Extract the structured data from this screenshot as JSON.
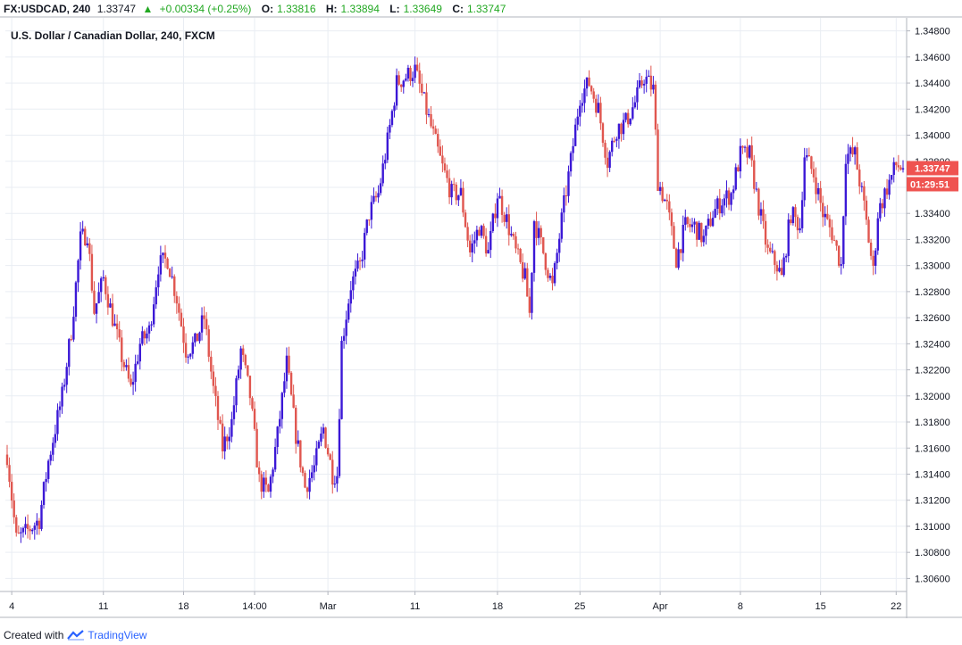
{
  "header": {
    "symbol": "FX:USDCAD, 240",
    "last": "1.33747",
    "change": "+0.00334 (+0.25%)",
    "o_label": "O:",
    "o_value": "1.33816",
    "h_label": "H:",
    "h_value": "1.33894",
    "l_label": "L:",
    "l_value": "1.33649",
    "c_label": "C:",
    "c_value": "1.33747"
  },
  "footer": {
    "created_with": "Created with",
    "brand": "TradingView"
  },
  "price_badge": "1.33747",
  "timer_badge": "01:29:51",
  "colors": {
    "up": "#3b18d6",
    "down": "#e0564f",
    "badge": "#ef5350",
    "grid": "#e9edf3",
    "axis": "#b2b5be"
  },
  "chart_data": {
    "type": "candlestick",
    "title": "U.S. Dollar / Canadian Dollar, 240, FXCM",
    "xlabel": "",
    "ylabel": "",
    "ylim": [
      1.305,
      1.349
    ],
    "y_ticks": [
      "1.30600",
      "1.30800",
      "1.31000",
      "1.31200",
      "1.31400",
      "1.31600",
      "1.31800",
      "1.32000",
      "1.32200",
      "1.32400",
      "1.32600",
      "1.32800",
      "1.33000",
      "1.33200",
      "1.33400",
      "1.33600",
      "1.33800",
      "1.34000",
      "1.34200",
      "1.34400",
      "1.34600",
      "1.34800"
    ],
    "x_ticks": [
      {
        "label": "4",
        "bar": 2
      },
      {
        "label": "11",
        "bar": 42
      },
      {
        "label": "18",
        "bar": 77
      },
      {
        "label": "14:00",
        "bar": 108
      },
      {
        "label": "Mar",
        "bar": 140
      },
      {
        "label": "11",
        "bar": 178
      },
      {
        "label": "18",
        "bar": 214
      },
      {
        "label": "25",
        "bar": 250
      },
      {
        "label": "Apr",
        "bar": 285
      },
      {
        "label": "8",
        "bar": 320
      },
      {
        "label": "15",
        "bar": 355
      },
      {
        "label": "22",
        "bar": 388
      }
    ],
    "bar_count": 392,
    "waypoints": [
      [
        0,
        1.3155
      ],
      [
        4,
        1.309
      ],
      [
        8,
        1.3095
      ],
      [
        14,
        1.3105
      ],
      [
        18,
        1.315
      ],
      [
        24,
        1.32
      ],
      [
        28,
        1.325
      ],
      [
        32,
        1.332
      ],
      [
        35,
        1.3325
      ],
      [
        38,
        1.3265
      ],
      [
        42,
        1.329
      ],
      [
        46,
        1.326
      ],
      [
        50,
        1.323
      ],
      [
        54,
        1.3205
      ],
      [
        58,
        1.324
      ],
      [
        62,
        1.325
      ],
      [
        66,
        1.33
      ],
      [
        70,
        1.3305
      ],
      [
        74,
        1.3275
      ],
      [
        78,
        1.3235
      ],
      [
        82,
        1.324
      ],
      [
        86,
        1.326
      ],
      [
        90,
        1.3205
      ],
      [
        94,
        1.316
      ],
      [
        98,
        1.318
      ],
      [
        102,
        1.3235
      ],
      [
        106,
        1.32
      ],
      [
        110,
        1.3135
      ],
      [
        114,
        1.3125
      ],
      [
        118,
        1.317
      ],
      [
        122,
        1.3225
      ],
      [
        126,
        1.317
      ],
      [
        130,
        1.313
      ],
      [
        134,
        1.3145
      ],
      [
        138,
        1.3175
      ],
      [
        142,
        1.314
      ],
      [
        144,
        1.314
      ],
      [
        146,
        1.324
      ],
      [
        150,
        1.3285
      ],
      [
        154,
        1.33
      ],
      [
        158,
        1.334
      ],
      [
        162,
        1.3355
      ],
      [
        166,
        1.3395
      ],
      [
        170,
        1.344
      ],
      [
        174,
        1.3445
      ],
      [
        178,
        1.345
      ],
      [
        182,
        1.3425
      ],
      [
        186,
        1.34
      ],
      [
        190,
        1.3375
      ],
      [
        194,
        1.3355
      ],
      [
        198,
        1.3355
      ],
      [
        202,
        1.331
      ],
      [
        206,
        1.333
      ],
      [
        210,
        1.331
      ],
      [
        214,
        1.3355
      ],
      [
        218,
        1.3335
      ],
      [
        222,
        1.331
      ],
      [
        226,
        1.329
      ],
      [
        228,
        1.3263
      ],
      [
        230,
        1.3335
      ],
      [
        234,
        1.331
      ],
      [
        238,
        1.3283
      ],
      [
        242,
        1.3335
      ],
      [
        246,
        1.338
      ],
      [
        250,
        1.343
      ],
      [
        254,
        1.344
      ],
      [
        258,
        1.342
      ],
      [
        262,
        1.338
      ],
      [
        266,
        1.3405
      ],
      [
        270,
        1.341
      ],
      [
        274,
        1.3425
      ],
      [
        278,
        1.3445
      ],
      [
        282,
        1.3435
      ],
      [
        284,
        1.3365
      ],
      [
        288,
        1.3345
      ],
      [
        292,
        1.3305
      ],
      [
        296,
        1.333
      ],
      [
        300,
        1.333
      ],
      [
        304,
        1.332
      ],
      [
        308,
        1.334
      ],
      [
        312,
        1.335
      ],
      [
        316,
        1.3355
      ],
      [
        320,
        1.3385
      ],
      [
        324,
        1.3385
      ],
      [
        328,
        1.3345
      ],
      [
        332,
        1.331
      ],
      [
        336,
        1.33
      ],
      [
        338,
        1.329
      ],
      [
        342,
        1.334
      ],
      [
        346,
        1.333
      ],
      [
        348,
        1.3385
      ],
      [
        352,
        1.337
      ],
      [
        356,
        1.334
      ],
      [
        360,
        1.3325
      ],
      [
        364,
        1.33
      ],
      [
        366,
        1.3385
      ],
      [
        370,
        1.3385
      ],
      [
        374,
        1.3345
      ],
      [
        378,
        1.3295
      ],
      [
        380,
        1.334
      ],
      [
        384,
        1.336
      ],
      [
        388,
        1.3377
      ],
      [
        391,
        1.33747
      ]
    ],
    "last_price": 1.33747
  }
}
